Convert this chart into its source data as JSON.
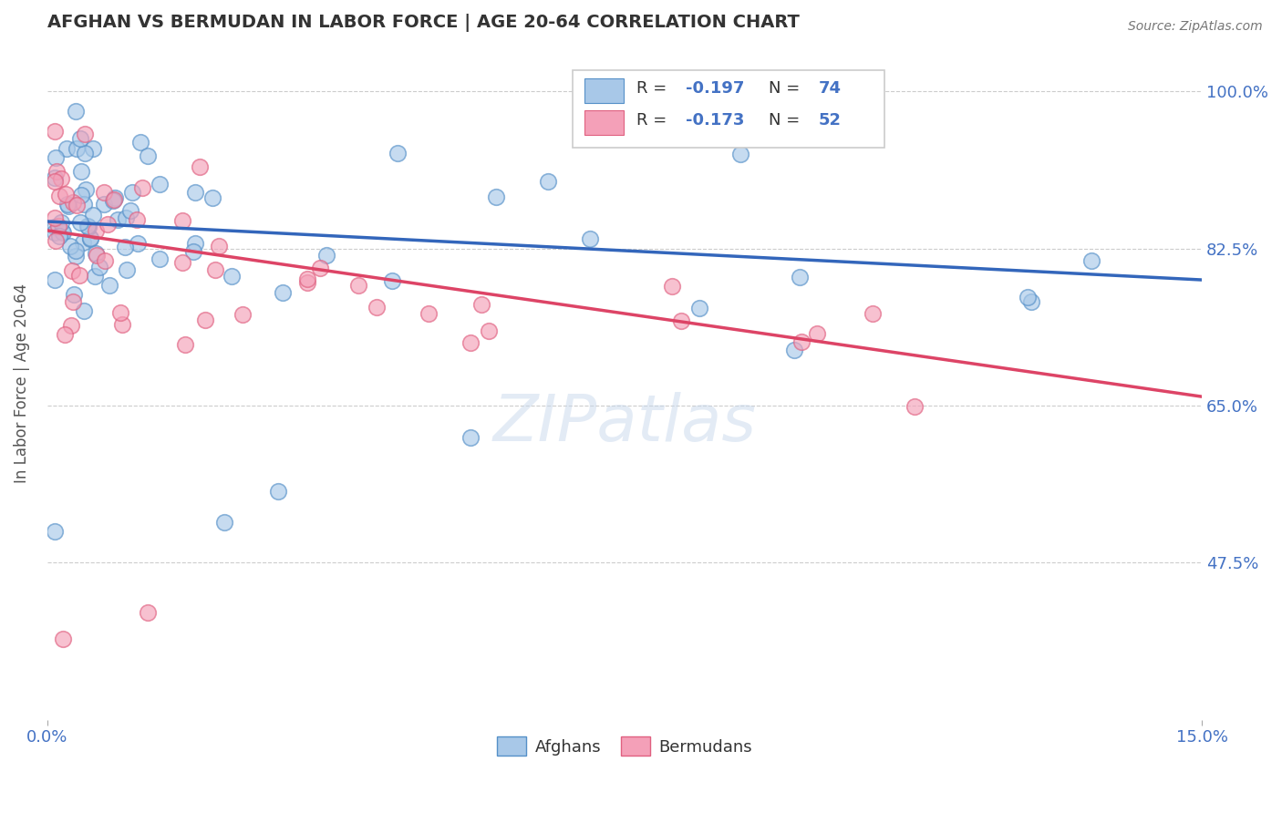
{
  "title": "AFGHAN VS BERMUDAN IN LABOR FORCE | AGE 20-64 CORRELATION CHART",
  "source_text": "Source: ZipAtlas.com",
  "ylabel": "In Labor Force | Age 20-64",
  "xlabel": "",
  "xlim": [
    0.0,
    0.15
  ],
  "ylim": [
    0.3,
    1.05
  ],
  "yticks": [
    0.475,
    0.65,
    0.825,
    1.0
  ],
  "ytick_labels": [
    "47.5%",
    "65.0%",
    "82.5%",
    "100.0%"
  ],
  "xtick_labels": [
    "0.0%",
    "15.0%"
  ],
  "watermark": "ZIPatlas",
  "legend_bottom": [
    "Afghans",
    "Bermudans"
  ],
  "afghan_color": "#a8c8e8",
  "bermudan_color": "#f4a0b8",
  "afghan_edge_color": "#5590c8",
  "bermudan_edge_color": "#e06080",
  "afghan_line_color": "#3366bb",
  "bermudan_line_color": "#dd4466",
  "title_color": "#333333",
  "axis_color": "#4472c4",
  "grid_color": "#cccccc",
  "background_color": "#ffffff",
  "af_line_x0": 0.0,
  "af_line_y0": 0.855,
  "af_line_x1": 0.15,
  "af_line_y1": 0.79,
  "be_line_x0": 0.0,
  "be_line_y0": 0.845,
  "be_line_x1": 0.15,
  "be_line_y1": 0.66
}
